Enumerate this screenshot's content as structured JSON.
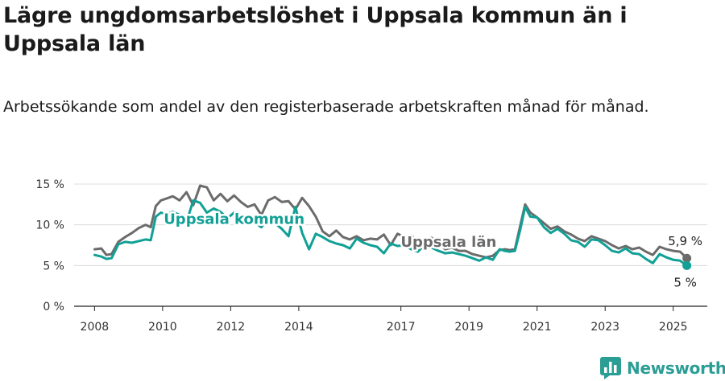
{
  "header": {
    "title": "Lägre ungdomsarbetslöshet i Uppsala kommun än i Uppsala län",
    "subtitle": "Arbetssökande som andel av den registerbaserade arbetskraften månad för månad."
  },
  "brand": {
    "name": "Newsworthy",
    "icon": "bar-chart-logo-icon",
    "color": "#2a9d95"
  },
  "chart_data": {
    "type": "line",
    "title": "Lägre ungdomsarbetslöshet i Uppsala kommun än i Uppsala län",
    "xlabel": "",
    "ylabel": "",
    "xlim": [
      2007.4,
      2026.0
    ],
    "ylim": [
      0,
      15
    ],
    "y_ticks": [
      0,
      5,
      10,
      15
    ],
    "y_tick_labels": [
      "0 %",
      "5 %",
      "10 %",
      "15 %"
    ],
    "x_ticks": [
      2008,
      2010,
      2012,
      2014,
      2017,
      2019,
      2021,
      2023,
      2025
    ],
    "x_tick_labels": [
      "2008",
      "2010",
      "2012",
      "2014",
      "2017",
      "2019",
      "2021",
      "2023",
      "2025"
    ],
    "grid": "horizontal",
    "legend": "inline-labels",
    "series": [
      {
        "name": "Uppsala län",
        "color": "#6b6b6b",
        "label_at": [
          2018.4,
          7.3
        ],
        "end_label": "5,9 %",
        "x": [
          2008.0,
          2008.2,
          2008.35,
          2008.5,
          2008.7,
          2008.9,
          2009.1,
          2009.3,
          2009.5,
          2009.65,
          2009.8,
          2009.95,
          2010.1,
          2010.3,
          2010.5,
          2010.7,
          2010.9,
          2011.1,
          2011.3,
          2011.5,
          2011.7,
          2011.9,
          2012.1,
          2012.3,
          2012.5,
          2012.7,
          2012.9,
          2013.1,
          2013.3,
          2013.5,
          2013.7,
          2013.9,
          2014.1,
          2014.3,
          2014.5,
          2014.7,
          2014.9,
          2015.1,
          2015.3,
          2015.5,
          2015.7,
          2015.9,
          2016.1,
          2016.3,
          2016.5,
          2016.7,
          2016.9,
          2017.1,
          2017.3,
          2017.5,
          2017.7,
          2017.9,
          2018.1,
          2018.3,
          2018.5,
          2018.7,
          2018.9,
          2019.1,
          2019.3,
          2019.5,
          2019.7,
          2019.9,
          2020.05,
          2020.2,
          2020.35,
          2020.5,
          2020.65,
          2020.8,
          2021.0,
          2021.2,
          2021.4,
          2021.6,
          2021.8,
          2022.0,
          2022.2,
          2022.4,
          2022.6,
          2022.8,
          2023.0,
          2023.2,
          2023.4,
          2023.6,
          2023.8,
          2024.0,
          2024.2,
          2024.4,
          2024.6,
          2024.8,
          2025.0,
          2025.2,
          2025.4
        ],
        "values": [
          7.0,
          7.1,
          6.3,
          6.4,
          7.9,
          8.5,
          9.0,
          9.6,
          10.0,
          9.7,
          12.3,
          13.0,
          13.2,
          13.5,
          13.0,
          14.0,
          12.4,
          14.8,
          14.6,
          13.0,
          13.8,
          12.9,
          13.6,
          12.8,
          12.2,
          12.5,
          11.2,
          13.0,
          13.4,
          12.8,
          12.9,
          11.9,
          13.3,
          12.3,
          11.0,
          9.2,
          8.6,
          9.3,
          8.5,
          8.2,
          8.6,
          8.1,
          8.3,
          8.2,
          8.8,
          7.5,
          8.9,
          8.5,
          8.7,
          7.9,
          8.0,
          8.4,
          7.8,
          7.0,
          7.2,
          6.8,
          6.8,
          6.4,
          6.2,
          6.0,
          6.2,
          6.9,
          7.0,
          6.9,
          7.0,
          9.8,
          12.5,
          11.5,
          10.9,
          10.2,
          9.5,
          9.8,
          9.2,
          8.8,
          8.3,
          8.0,
          8.6,
          8.3,
          8.0,
          7.5,
          7.1,
          7.4,
          7.0,
          7.2,
          6.7,
          6.3,
          7.3,
          7.0,
          6.8,
          6.7,
          5.9
        ]
      },
      {
        "name": "Uppsala kommun",
        "color": "#11a096",
        "label_at": [
          2012.1,
          10.1
        ],
        "end_label": "5 %",
        "x": [
          2008.0,
          2008.2,
          2008.35,
          2008.5,
          2008.7,
          2008.9,
          2009.1,
          2009.3,
          2009.5,
          2009.65,
          2009.8,
          2009.95,
          2010.1,
          2010.3,
          2010.5,
          2010.7,
          2010.9,
          2011.1,
          2011.3,
          2011.5,
          2011.7,
          2011.9,
          2012.1,
          2012.3,
          2012.5,
          2012.7,
          2012.9,
          2013.1,
          2013.3,
          2013.5,
          2013.7,
          2013.9,
          2014.1,
          2014.3,
          2014.5,
          2014.7,
          2014.9,
          2015.1,
          2015.3,
          2015.5,
          2015.7,
          2015.9,
          2016.1,
          2016.3,
          2016.5,
          2016.7,
          2016.9,
          2017.1,
          2017.3,
          2017.5,
          2017.7,
          2017.9,
          2018.1,
          2018.3,
          2018.5,
          2018.7,
          2018.9,
          2019.1,
          2019.3,
          2019.5,
          2019.7,
          2019.9,
          2020.05,
          2020.2,
          2020.35,
          2020.5,
          2020.65,
          2020.8,
          2021.0,
          2021.2,
          2021.4,
          2021.6,
          2021.8,
          2022.0,
          2022.2,
          2022.4,
          2022.6,
          2022.8,
          2023.0,
          2023.2,
          2023.4,
          2023.6,
          2023.8,
          2024.0,
          2024.2,
          2024.4,
          2024.6,
          2024.8,
          2025.0,
          2025.2,
          2025.4
        ],
        "values": [
          6.3,
          6.1,
          5.8,
          5.9,
          7.6,
          7.9,
          7.8,
          8.0,
          8.2,
          8.1,
          11.0,
          11.5,
          11.3,
          11.6,
          11.2,
          10.3,
          13.0,
          12.7,
          11.5,
          12.0,
          11.6,
          10.8,
          11.5,
          11.1,
          10.5,
          10.3,
          9.7,
          10.8,
          10.2,
          9.5,
          8.6,
          12.2,
          9.0,
          7.0,
          8.9,
          8.5,
          8.0,
          7.7,
          7.5,
          7.1,
          8.3,
          7.8,
          7.5,
          7.3,
          6.5,
          7.7,
          7.4,
          7.5,
          7.0,
          6.7,
          7.6,
          7.2,
          6.8,
          6.5,
          6.6,
          6.4,
          6.2,
          5.9,
          5.6,
          6.0,
          5.7,
          7.0,
          6.8,
          6.7,
          6.8,
          9.3,
          12.2,
          11.0,
          10.9,
          9.7,
          9.0,
          9.5,
          8.9,
          8.1,
          7.9,
          7.3,
          8.2,
          8.1,
          7.5,
          6.8,
          6.6,
          7.1,
          6.5,
          6.4,
          5.8,
          5.3,
          6.4,
          6.0,
          5.7,
          5.6,
          5.0
        ]
      }
    ]
  }
}
